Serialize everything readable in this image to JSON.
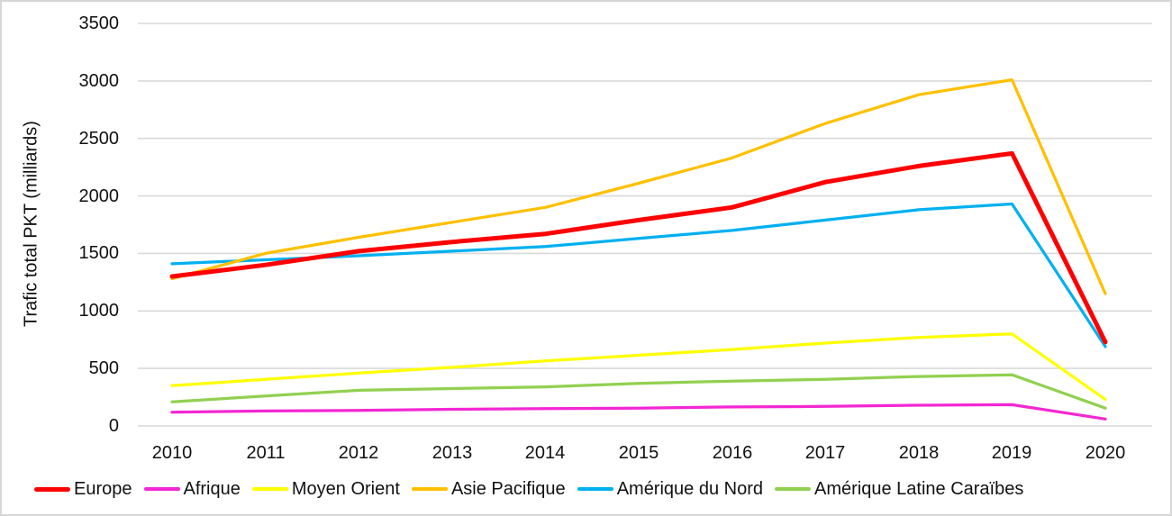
{
  "chart_data": {
    "type": "line",
    "title": "",
    "xlabel": "",
    "ylabel": "Trafic total PKT (milliards)",
    "categories": [
      "2010",
      "2011",
      "2012",
      "2013",
      "2014",
      "2015",
      "2016",
      "2017",
      "2018",
      "2019",
      "2020"
    ],
    "yticks": [
      0,
      500,
      1000,
      1500,
      2000,
      2500,
      3000,
      3500
    ],
    "ylim": [
      0,
      3500
    ],
    "grid": "horizontal",
    "gridline_color": "#d9d9d9",
    "legend_position": "bottom",
    "series": [
      {
        "name": "Europe",
        "color": "#ff0000",
        "thick": true,
        "values": [
          1300,
          1400,
          1520,
          1600,
          1670,
          1790,
          1900,
          2120,
          2260,
          2370,
          730
        ]
      },
      {
        "name": "Afrique",
        "color": "#f327d3",
        "thick": false,
        "values": [
          120,
          130,
          135,
          145,
          150,
          155,
          165,
          170,
          180,
          185,
          60
        ]
      },
      {
        "name": "Moyen Orient",
        "color": "#ffff00",
        "thick": false,
        "values": [
          350,
          405,
          460,
          510,
          565,
          615,
          665,
          720,
          770,
          800,
          230
        ]
      },
      {
        "name": "Asie Pacifique",
        "color": "#ffc000",
        "thick": false,
        "values": [
          1280,
          1500,
          1640,
          1770,
          1900,
          2110,
          2330,
          2630,
          2880,
          3010,
          1150
        ]
      },
      {
        "name": "Amérique du Nord",
        "color": "#00b0f0",
        "thick": false,
        "values": [
          1410,
          1445,
          1480,
          1520,
          1560,
          1630,
          1700,
          1790,
          1880,
          1930,
          690
        ]
      },
      {
        "name": "Amérique Latine Caraïbes",
        "color": "#92d050",
        "thick": false,
        "values": [
          210,
          260,
          310,
          325,
          340,
          370,
          390,
          405,
          430,
          445,
          155
        ]
      }
    ]
  }
}
